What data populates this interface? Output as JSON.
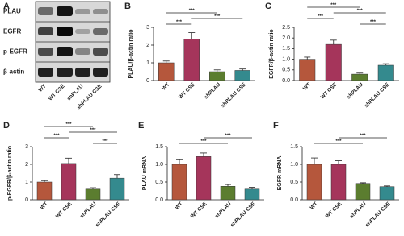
{
  "blot": {
    "panel": "A",
    "proteins": [
      "PLAU",
      "EGFR",
      "p-EGFR",
      "β-actin"
    ],
    "lanes": [
      "WT",
      "WT CSE",
      "shPLAU",
      "shPLAU CSE"
    ]
  },
  "chart_data": [
    {
      "type": "bar",
      "panel": "B",
      "y_label": "PLAU/β-actin ratio",
      "categories": [
        "WT",
        "WT CSE",
        "shPLAU",
        "shPLAU CSE"
      ],
      "values": [
        1.0,
        2.35,
        0.5,
        0.57
      ],
      "errors": [
        0.1,
        0.35,
        0.1,
        0.08
      ],
      "colors": [
        "#b5573c",
        "#a5355b",
        "#5b7d2f",
        "#348a8e"
      ],
      "ylim": [
        0,
        3
      ],
      "yticks": [
        0,
        1,
        2,
        3
      ],
      "annotations": [
        {
          "text": "***",
          "from": 0,
          "to": 1
        },
        {
          "text": "***",
          "from": 1,
          "to": 3
        },
        {
          "text": "***",
          "from": 0,
          "to": 2
        }
      ]
    },
    {
      "type": "bar",
      "panel": "C",
      "y_label": "EGFR/β-actin ratio",
      "categories": [
        "WT",
        "WT CSE",
        "shPLAU",
        "shPLAU CSE"
      ],
      "values": [
        1.0,
        1.7,
        0.3,
        0.72
      ],
      "errors": [
        0.1,
        0.2,
        0.05,
        0.07
      ],
      "colors": [
        "#b5573c",
        "#a5355b",
        "#5b7d2f",
        "#348a8e"
      ],
      "ylim": [
        0,
        2.5
      ],
      "yticks": [
        {
          "value": 0,
          "label": "0.0"
        },
        {
          "value": 0.5,
          "label": "0.5"
        },
        {
          "value": 1,
          "label": "1.0"
        },
        {
          "value": 1.5,
          "label": "1.5"
        },
        {
          "value": 2,
          "label": "2.0"
        },
        {
          "value": 2.5,
          "label": "2.5"
        }
      ],
      "annotations": [
        {
          "text": "***",
          "from": 2,
          "to": 3
        },
        {
          "text": "***",
          "from": 0,
          "to": 1
        },
        {
          "text": "***",
          "from": 1,
          "to": 3
        },
        {
          "text": "***",
          "from": 0,
          "to": 2
        }
      ]
    },
    {
      "type": "bar",
      "panel": "D",
      "y_label": "p-EGFR/β-actin ratio",
      "categories": [
        "WT",
        "WT CSE",
        "shPLAU",
        "shPLAU CSE"
      ],
      "values": [
        1.0,
        2.05,
        0.6,
        1.22
      ],
      "errors": [
        0.08,
        0.3,
        0.08,
        0.2
      ],
      "colors": [
        "#b5573c",
        "#a5355b",
        "#5b7d2f",
        "#348a8e"
      ],
      "ylim": [
        0,
        3
      ],
      "yticks": [
        0,
        1,
        2,
        3
      ],
      "annotations": [
        {
          "text": "***",
          "from": 2,
          "to": 3
        },
        {
          "text": "***",
          "from": 0,
          "to": 1
        },
        {
          "text": "***",
          "from": 1,
          "to": 3
        },
        {
          "text": "***",
          "from": 0,
          "to": 2
        }
      ]
    },
    {
      "type": "bar",
      "panel": "E",
      "y_label": "PLAU mRNA",
      "categories": [
        "WT",
        "WT CSE",
        "shPLAU",
        "shPLAU CSE"
      ],
      "values": [
        1.0,
        1.22,
        0.38,
        0.3
      ],
      "errors": [
        0.13,
        0.1,
        0.05,
        0.05
      ],
      "colors": [
        "#b5573c",
        "#a5355b",
        "#5b7d2f",
        "#348a8e"
      ],
      "ylim": [
        0,
        1.5
      ],
      "yticks": [
        {
          "value": 0,
          "label": "0.0"
        },
        {
          "value": 0.5,
          "label": "0.5"
        },
        {
          "value": 1,
          "label": "1.0"
        },
        {
          "value": 1.5,
          "label": "1.5"
        }
      ],
      "annotations": [
        {
          "text": "***",
          "from": 0,
          "to": 2
        },
        {
          "text": "***",
          "from": 1,
          "to": 3
        }
      ]
    },
    {
      "type": "bar",
      "panel": "F",
      "y_label": "EGFR mRNA",
      "categories": [
        "WT",
        "WT CSE",
        "shPLAU",
        "shPLAU CSE"
      ],
      "values": [
        1.0,
        1.0,
        0.46,
        0.37
      ],
      "errors": [
        0.18,
        0.1,
        0.02,
        0.02
      ],
      "colors": [
        "#b5573c",
        "#a5355b",
        "#5b7d2f",
        "#348a8e"
      ],
      "ylim": [
        0,
        1.5
      ],
      "yticks": [
        {
          "value": 0,
          "label": "0.0"
        },
        {
          "value": 0.5,
          "label": "0.5"
        },
        {
          "value": 1,
          "label": "1.0"
        },
        {
          "value": 1.5,
          "label": "1.5"
        }
      ],
      "annotations": [
        {
          "text": "***",
          "from": 0,
          "to": 2
        },
        {
          "text": "***",
          "from": 1,
          "to": 3
        }
      ]
    }
  ]
}
